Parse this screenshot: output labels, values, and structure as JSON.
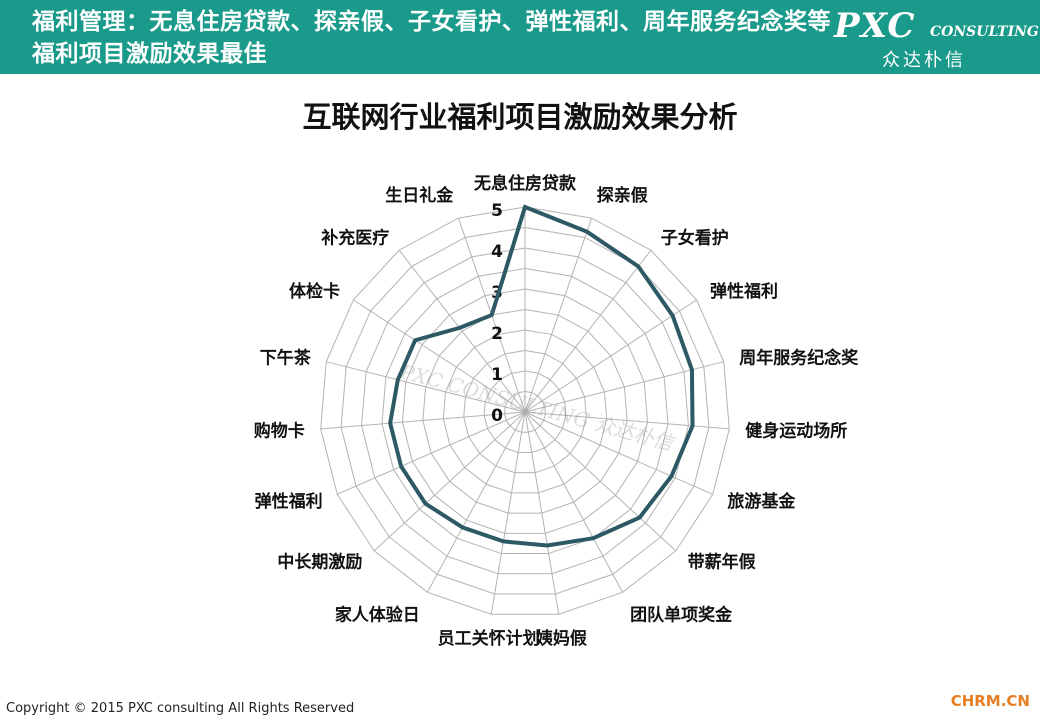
{
  "header": {
    "title": "福利管理：无息住房贷款、探亲假、子女看护、弹性福利、周年服务纪念奖等福利项目激励效果最佳",
    "logo_main": "PXC",
    "logo_sub": "CONSULTING",
    "logo_cn": "众达朴信",
    "bg_color": "#1a9a8a"
  },
  "footer": {
    "copyright": "Copyright © 2015  PXC consulting All Rights Reserved",
    "brand": "CHRM.CN"
  },
  "chart_data": {
    "type": "radar",
    "title": "互联网行业福利项目激励效果分析",
    "categories": [
      "无息住房贷款",
      "探亲假",
      "子女看护",
      "弹性福利",
      "周年服务纪念奖",
      "健身运动场所",
      "旅游基金",
      "带薪年假",
      "团队单项奖金",
      "姨妈假",
      "员工关怀计划",
      "家人体验日",
      "中长期激励",
      "弹性福利",
      "购物卡",
      "下午茶",
      "体检卡",
      "补充医疗",
      "生日礼金"
    ],
    "values": [
      5.0,
      4.65,
      4.5,
      4.3,
      4.2,
      4.1,
      3.9,
      3.8,
      3.5,
      3.3,
      3.2,
      3.2,
      3.3,
      3.3,
      3.3,
      3.2,
      3.2,
      2.6,
      2.5
    ],
    "rlim": [
      0,
      5
    ],
    "ticks": [
      "0",
      "1",
      "2",
      "3",
      "4",
      "5"
    ],
    "line_color": "#2d5965",
    "grid_color": "#b3b3b3",
    "grid": true,
    "watermark": "PXC CONSULTING 众达朴信"
  }
}
